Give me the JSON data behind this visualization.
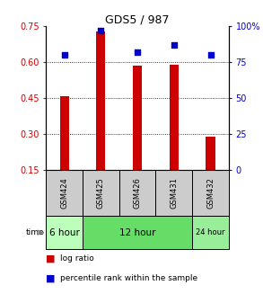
{
  "title": "GDS5 / 987",
  "samples": [
    "GSM424",
    "GSM425",
    "GSM426",
    "GSM431",
    "GSM432"
  ],
  "log_ratio": [
    0.46,
    0.73,
    0.585,
    0.59,
    0.29
  ],
  "percentile_rank": [
    80,
    97,
    82,
    87,
    80
  ],
  "ylim_left": [
    0.15,
    0.75
  ],
  "ylim_right": [
    0,
    100
  ],
  "yticks_left": [
    0.15,
    0.3,
    0.45,
    0.6,
    0.75
  ],
  "yticks_right": [
    0,
    25,
    50,
    75,
    100
  ],
  "ytick_labels_left": [
    "0.15",
    "0.30",
    "0.45",
    "0.60",
    "0.75"
  ],
  "ytick_labels_right": [
    "0",
    "25",
    "50",
    "75",
    "100%"
  ],
  "grid_values": [
    0.3,
    0.45,
    0.6
  ],
  "bar_color": "#cc0000",
  "dot_color": "#0000cc",
  "bar_width": 0.25,
  "dot_size": 18,
  "time_groups": [
    {
      "label": "6 hour",
      "start": 0,
      "end": 1,
      "color": "#bbffbb"
    },
    {
      "label": "12 hour",
      "start": 1,
      "end": 4,
      "color": "#66dd66"
    },
    {
      "label": "24 hour",
      "start": 4,
      "end": 5,
      "color": "#99ee99"
    }
  ],
  "sample_box_color": "#cccccc",
  "legend_bar_label": "log ratio",
  "legend_dot_label": "percentile rank within the sample",
  "left_axis_color": "#cc0000",
  "right_axis_color": "#0000cc",
  "title_fontsize": 9,
  "tick_fontsize": 7,
  "sample_fontsize": 6,
  "time_fontsize": 7.5,
  "legend_fontsize": 6.5
}
